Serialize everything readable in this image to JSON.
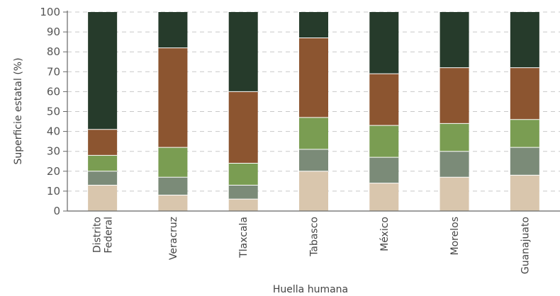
{
  "chart_data": {
    "type": "bar",
    "stacked": true,
    "categories": [
      [
        "Distrito",
        "Federal"
      ],
      [
        "Veracruz"
      ],
      [
        "Tlaxcala"
      ],
      [
        "Tabasco"
      ],
      [
        "México"
      ],
      [
        "Morelos"
      ],
      [
        "Guanajuato"
      ]
    ],
    "series": [
      {
        "color": "#d9c6ad",
        "values": [
          13,
          8,
          6,
          20,
          14,
          17,
          18
        ]
      },
      {
        "color": "#7b8b78",
        "values": [
          7,
          9,
          7,
          11,
          13,
          13,
          14
        ]
      },
      {
        "color": "#7a9d52",
        "values": [
          8,
          15,
          11,
          16,
          16,
          14,
          14
        ]
      },
      {
        "color": "#8c5530",
        "values": [
          13,
          50,
          36,
          40,
          26,
          28,
          26
        ]
      },
      {
        "color": "#263b2b",
        "values": [
          59,
          18,
          40,
          13,
          31,
          28,
          28
        ]
      }
    ],
    "xlabel": "Huella humana",
    "ylabel": "Superficie estatal (%)",
    "ylim": [
      0,
      100
    ],
    "yticks": [
      0,
      10,
      20,
      30,
      40,
      50,
      60,
      70,
      80,
      90,
      100
    ],
    "grid": true
  }
}
